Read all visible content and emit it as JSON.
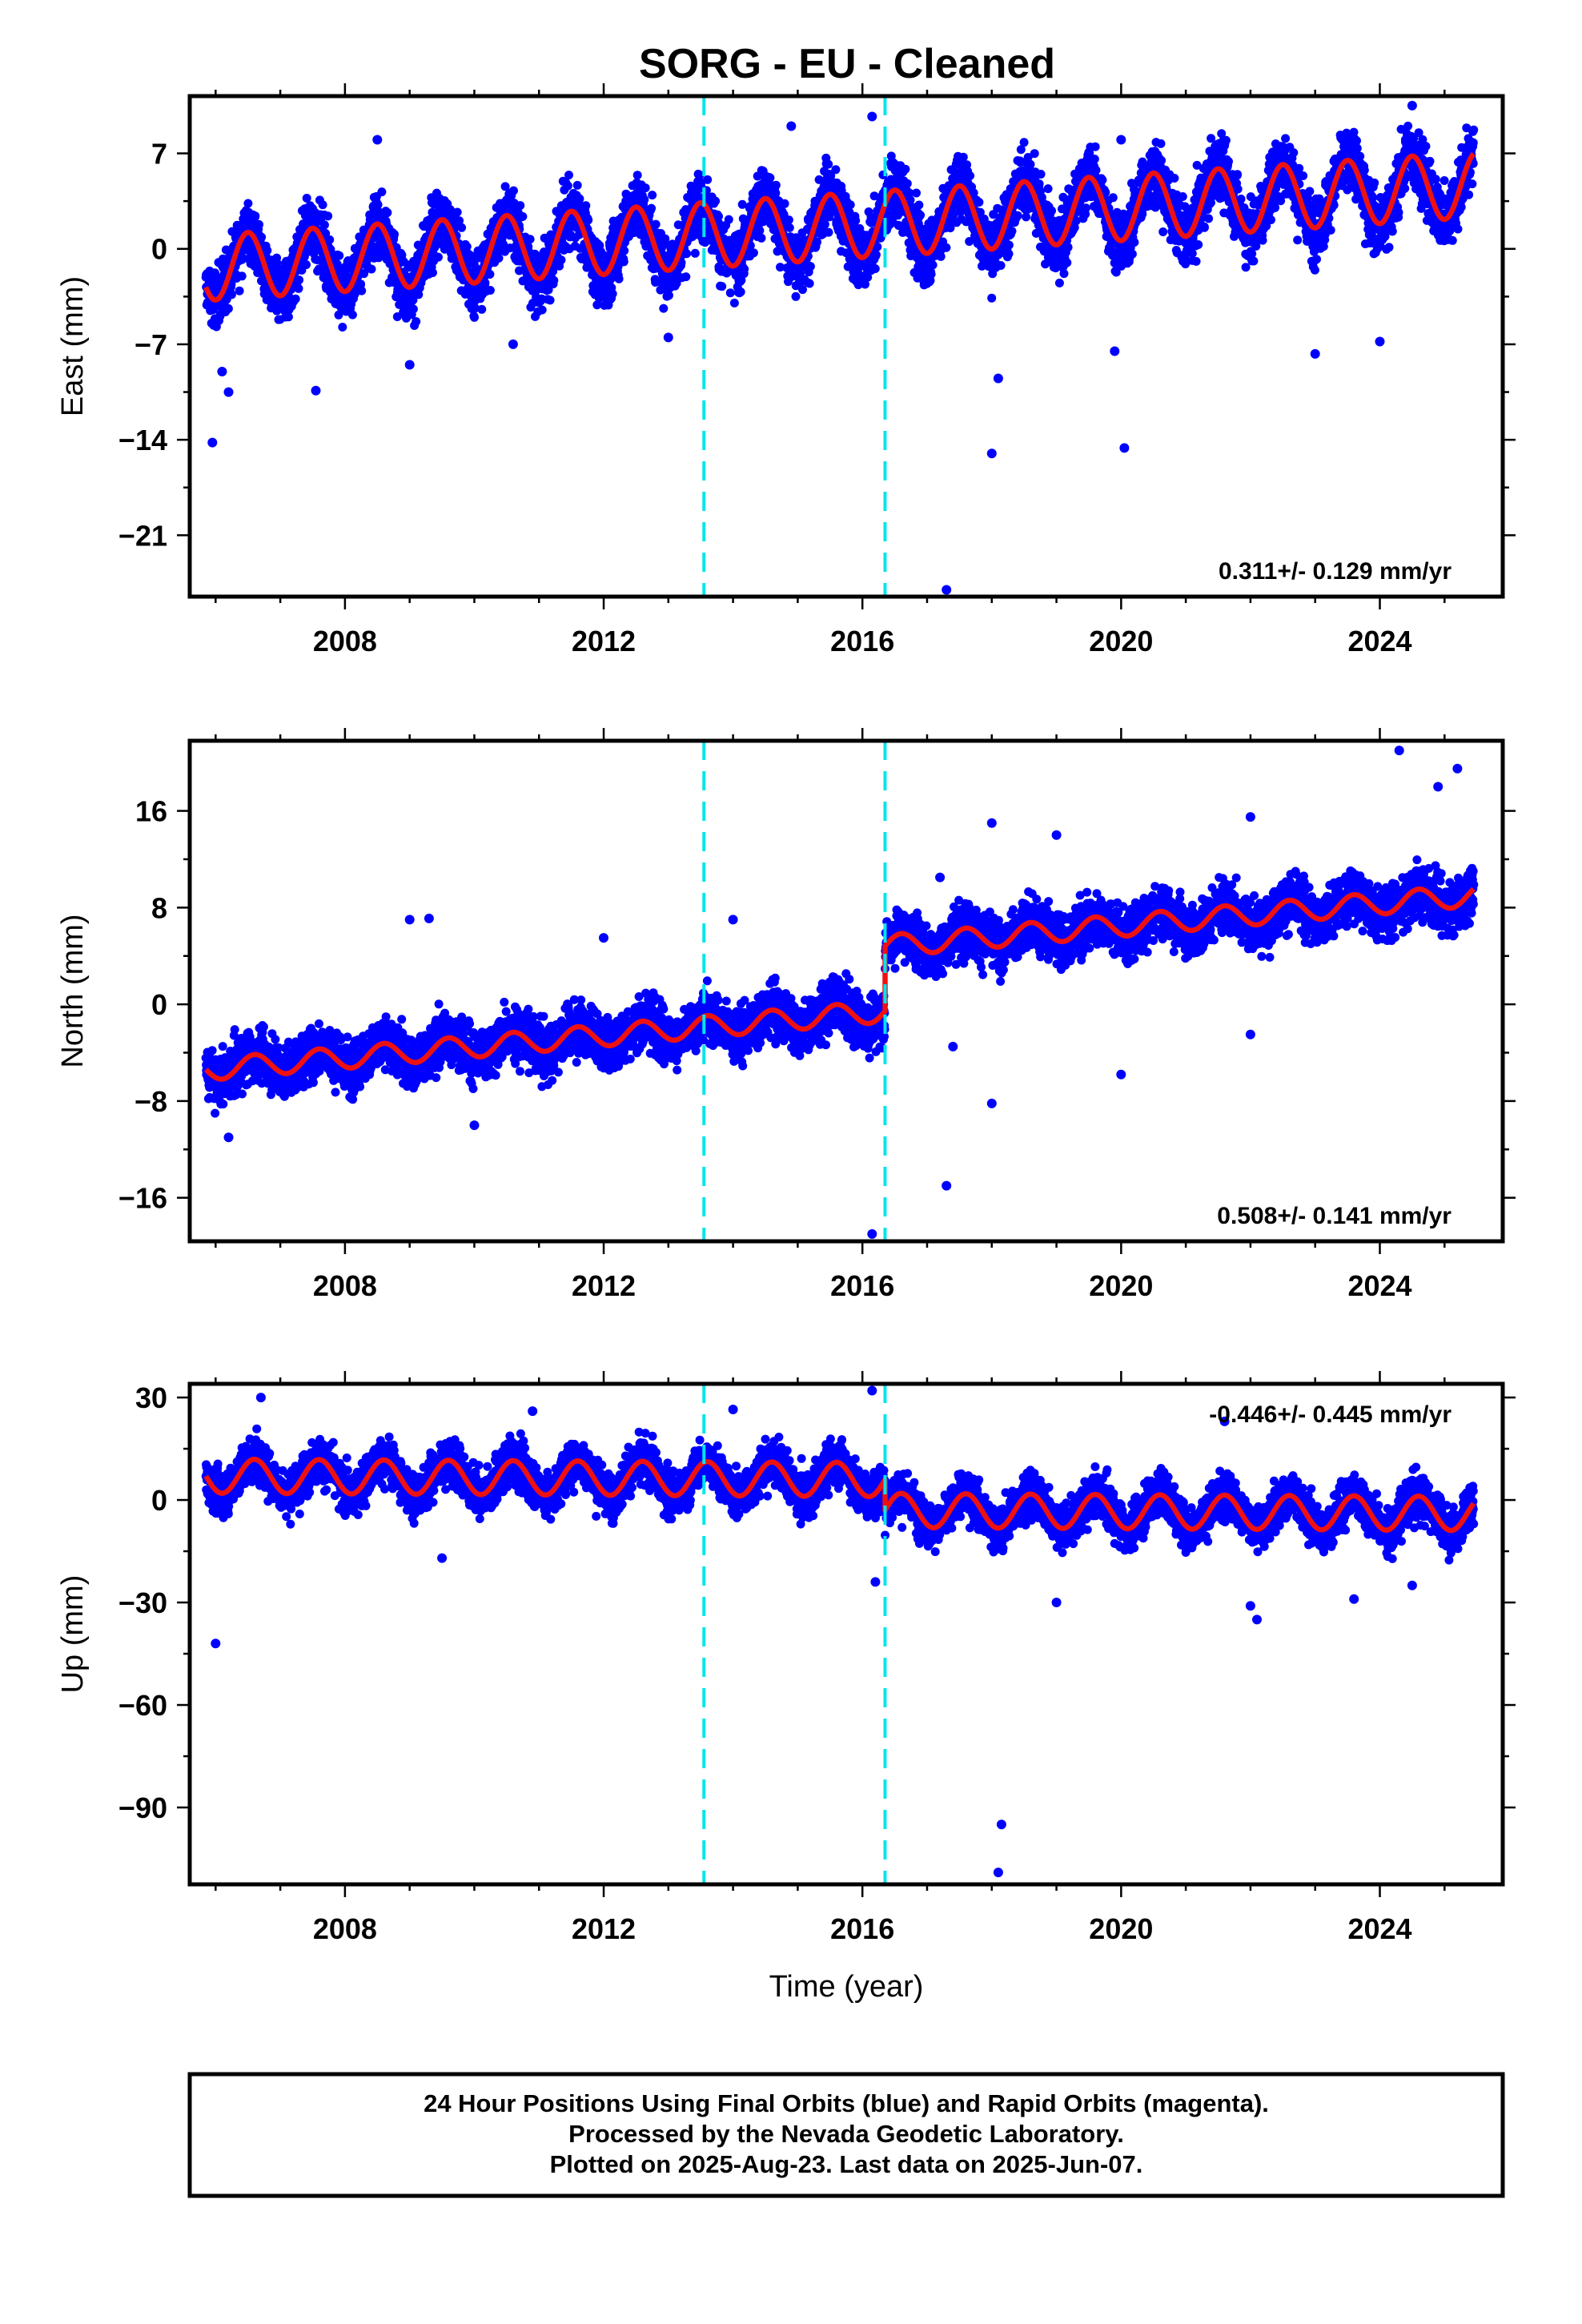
{
  "title": "SORG  - EU - Cleaned",
  "colors": {
    "final_orbits": "#0000ff",
    "model": "#ee1111",
    "steps": "#00e5ee",
    "frame": "#000000"
  },
  "chart_data": [
    {
      "type": "scatter",
      "component": "east",
      "ylabel": "East (mm)",
      "xlabel": "",
      "xlim": [
        2005.6,
        2025.9
      ],
      "ylim": [
        -25.5,
        11.2
      ],
      "xticks": [
        2008,
        2012,
        2016,
        2020,
        2024
      ],
      "yticks": [
        7,
        0,
        -7,
        -14,
        -21
      ],
      "rate_label": "0.311+/- 0.129 mm/yr",
      "rate_position": "bottom-right",
      "step_lines": [
        2013.55,
        2016.35
      ],
      "model": {
        "start": 2005.85,
        "end": 2025.45,
        "offset": -1.4,
        "trend": 0.311,
        "annual_amplitude": 2.4,
        "annual_peak": 2006.5,
        "jumps": [
          {
            "at": 2016.35,
            "delta": 0.0
          }
        ]
      },
      "scatter_sd": 1.6,
      "outliers": [
        [
          2005.95,
          -14.2
        ],
        [
          2006.2,
          -10.5
        ],
        [
          2006.1,
          -9.0
        ],
        [
          2008.5,
          8.0
        ],
        [
          2007.55,
          -10.4
        ],
        [
          2009.0,
          -8.5
        ],
        [
          2010.6,
          -7.0
        ],
        [
          2013.0,
          -6.5
        ],
        [
          2014.9,
          9.0
        ],
        [
          2016.15,
          9.7
        ],
        [
          2017.3,
          -25.0
        ],
        [
          2018.0,
          -15.0
        ],
        [
          2018.1,
          -9.5
        ],
        [
          2020.0,
          8.0
        ],
        [
          2020.05,
          -14.6
        ],
        [
          2019.9,
          -7.5
        ],
        [
          2023.0,
          -7.7
        ],
        [
          2024.5,
          10.5
        ],
        [
          2024.0,
          -6.8
        ]
      ],
      "points_total": 6200
    },
    {
      "type": "scatter",
      "component": "north",
      "ylabel": "North (mm)",
      "xlabel": "",
      "xlim": [
        2005.6,
        2025.9
      ],
      "ylim": [
        -19.6,
        21.8
      ],
      "xticks": [
        2008,
        2012,
        2016,
        2020,
        2024
      ],
      "yticks": [
        16,
        8,
        0,
        -8,
        -16
      ],
      "rate_label": "0.508+/- 0.141 mm/yr",
      "rate_position": "bottom-right",
      "step_lines": [
        2013.55,
        2016.35
      ],
      "model": {
        "start": 2005.85,
        "end": 2025.45,
        "offset": -5.4,
        "trend": 0.46,
        "annual_amplitude": 0.9,
        "annual_peak": 2006.6,
        "jumps": [
          {
            "at": 2016.35,
            "delta": 5.4
          }
        ]
      },
      "scatter_sd": 1.5,
      "outliers": [
        [
          2006.2,
          -11.0
        ],
        [
          2009.0,
          7.0
        ],
        [
          2009.3,
          7.1
        ],
        [
          2010.0,
          -10.0
        ],
        [
          2012.0,
          5.5
        ],
        [
          2014.0,
          7.0
        ],
        [
          2016.15,
          -19.0
        ],
        [
          2017.2,
          10.5
        ],
        [
          2017.3,
          -15.0
        ],
        [
          2017.4,
          -3.5
        ],
        [
          2018.0,
          15.0
        ],
        [
          2018.0,
          -8.2
        ],
        [
          2019.0,
          14.0
        ],
        [
          2020.0,
          -5.8
        ],
        [
          2022.0,
          -2.5
        ],
        [
          2022.0,
          15.5
        ],
        [
          2024.3,
          21.0
        ],
        [
          2025.2,
          19.5
        ],
        [
          2024.9,
          18.0
        ]
      ],
      "points_total": 6200
    },
    {
      "type": "scatter",
      "component": "up",
      "ylabel": "Up (mm)",
      "xlabel": "Time (year)",
      "xlim": [
        2005.6,
        2025.9
      ],
      "ylim": [
        -112.5,
        34.0
      ],
      "xticks": [
        2008,
        2012,
        2016,
        2020,
        2024
      ],
      "yticks": [
        30,
        0,
        -30,
        -60,
        -90
      ],
      "rate_label": "-0.446+/- 0.445 mm/yr",
      "rate_position": "top-right",
      "step_lines": [
        2013.55,
        2016.35
      ],
      "model": {
        "start": 2005.85,
        "end": 2025.45,
        "offset": 7.0,
        "trend": -0.1,
        "annual_amplitude": 5.0,
        "annual_peak": 2006.6,
        "jumps": [
          {
            "at": 2016.35,
            "delta": -9.0
          }
        ]
      },
      "scatter_sd": 4.5,
      "outliers": [
        [
          2006.0,
          -42.0
        ],
        [
          2006.7,
          30.0
        ],
        [
          2009.5,
          -17.0
        ],
        [
          2010.9,
          26.0
        ],
        [
          2014.0,
          26.5
        ],
        [
          2016.15,
          32.0
        ],
        [
          2016.2,
          -24.0
        ],
        [
          2018.15,
          -95.0
        ],
        [
          2018.1,
          -109.0
        ],
        [
          2019.0,
          -30.0
        ],
        [
          2021.6,
          23.0
        ],
        [
          2022.1,
          -35.0
        ],
        [
          2022.0,
          -31.0
        ],
        [
          2023.6,
          -29.0
        ],
        [
          2024.5,
          -25.0
        ]
      ],
      "points_total": 6200
    }
  ],
  "footer": {
    "line1": "24 Hour Positions Using Final Orbits (blue) and Rapid Orbits (magenta).",
    "line2": "Processed by the Nevada Geodetic Laboratory.",
    "line3": "Plotted on 2025-Aug-23. Last data on 2025-Jun-07."
  }
}
